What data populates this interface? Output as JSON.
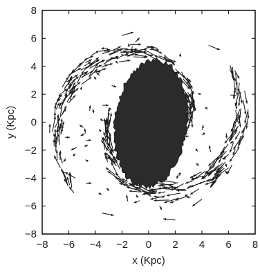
{
  "chart_data": {
    "type": "scatter",
    "subtype": "vector-field",
    "xlabel": "x (Kpc)",
    "ylabel": "y (Kpc)",
    "xlim": [
      -8,
      8
    ],
    "ylim": [
      -8,
      8
    ],
    "xticks": [
      -8,
      -6,
      -4,
      -2,
      0,
      2,
      4,
      6,
      8
    ],
    "yticks": [
      -8,
      -6,
      -4,
      -2,
      0,
      2,
      4,
      6,
      8
    ],
    "grid": false,
    "legend": "none",
    "series": [
      {
        "role": "central-bar",
        "points": [
          [
            0.0,
            0.0
          ],
          [
            -1.5,
            3.0
          ],
          [
            1.5,
            3.0
          ],
          [
            -2.5,
            0.5
          ],
          [
            2.5,
            -0.5
          ],
          [
            -1.5,
            -3.0
          ],
          [
            1.5,
            -3.0
          ],
          [
            0.0,
            4.6
          ],
          [
            0.0,
            -4.6
          ],
          [
            -2.8,
            2.0
          ],
          [
            2.8,
            -2.0
          ]
        ]
      },
      {
        "role": "velocity-vectors",
        "spiral_arms": 2,
        "rotation": "clockwise",
        "radius_range": [
          3.0,
          7.6
        ],
        "sample_vectors": [
          {
            "x": -6.5,
            "y": 2.5,
            "dx": 0.6,
            "dy": 1.0
          },
          {
            "x": -5.5,
            "y": -4.0,
            "dx": -0.9,
            "dy": 0.5
          },
          {
            "x": 4.5,
            "y": 5.5,
            "dx": 1.0,
            "dy": -0.4
          },
          {
            "x": 6.8,
            "y": 0.5,
            "dx": 0.1,
            "dy": -1.0
          },
          {
            "x": 4.0,
            "y": -5.5,
            "dx": -0.8,
            "dy": -0.6
          },
          {
            "x": -2.0,
            "y": 6.2,
            "dx": 1.0,
            "dy": 0.3
          },
          {
            "x": -3.5,
            "y": -6.5,
            "dx": 1.0,
            "dy": -0.2
          },
          {
            "x": 2.0,
            "y": -7.0,
            "dx": -1.0,
            "dy": 0.1
          }
        ]
      }
    ]
  }
}
